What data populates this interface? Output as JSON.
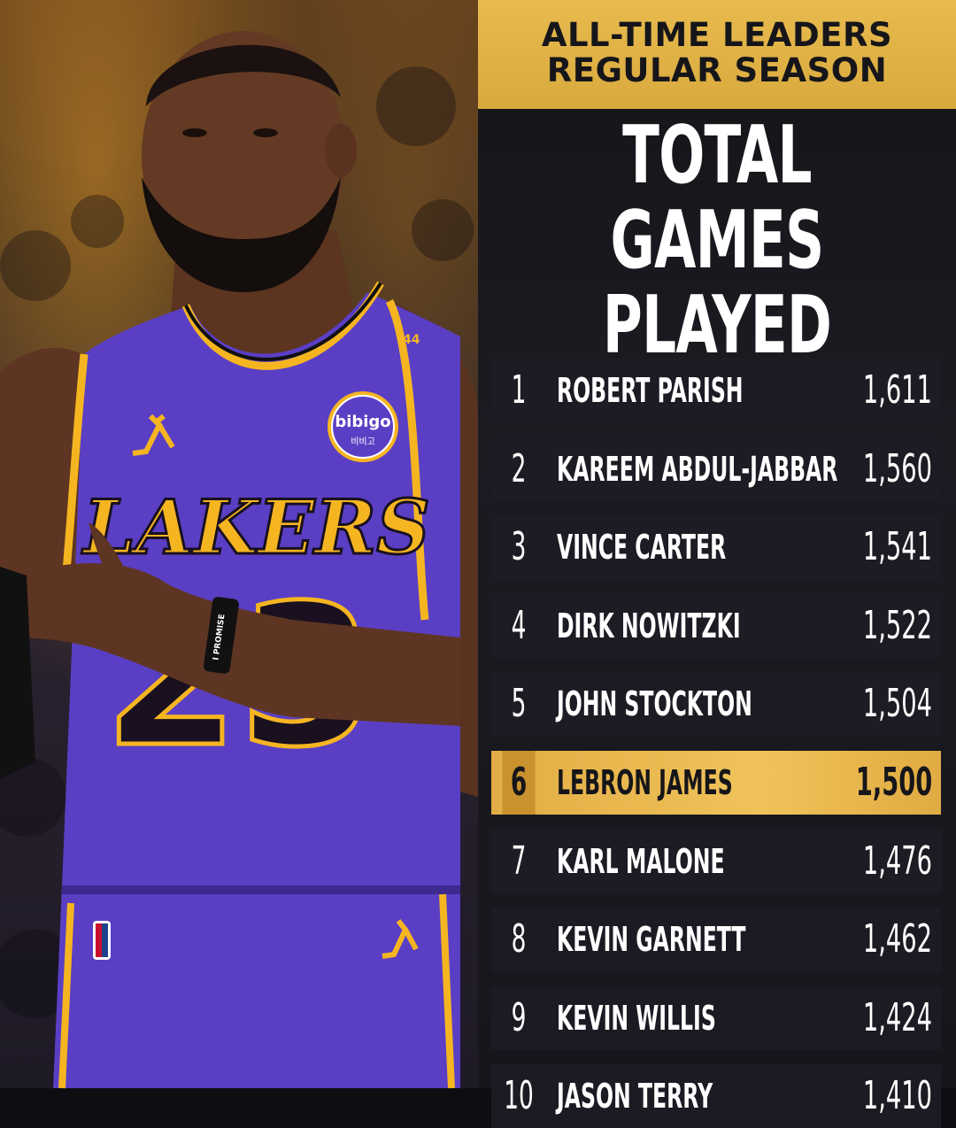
{
  "header": {
    "line1": "ALL-TIME LEADERS",
    "line2": "REGULAR SEASON"
  },
  "headline": {
    "line1": "TOTAL",
    "line2": "GAMES PLAYED"
  },
  "photo": {
    "jersey_team": "LAKERS",
    "sponsor": "bibigo",
    "sponsor_sub": "비비고",
    "wristband": "I PROMISE",
    "strap_number": "44",
    "colors": {
      "jersey": "#5a3fc4",
      "trim": "#f5b521",
      "skin": "#6b3f28"
    }
  },
  "colors": {
    "gold": "#e8bb4f",
    "panel": "#16161c",
    "row": "#1c1c24"
  },
  "leaders": [
    {
      "rank": "1",
      "name": "ROBERT PARISH",
      "games": "1,611",
      "highlight": false
    },
    {
      "rank": "2",
      "name": "KAREEM ABDUL-JABBAR",
      "games": "1,560",
      "highlight": false
    },
    {
      "rank": "3",
      "name": "VINCE CARTER",
      "games": "1,541",
      "highlight": false
    },
    {
      "rank": "4",
      "name": "DIRK NOWITZKI",
      "games": "1,522",
      "highlight": false
    },
    {
      "rank": "5",
      "name": "JOHN STOCKTON",
      "games": "1,504",
      "highlight": false
    },
    {
      "rank": "6",
      "name": "LEBRON JAMES",
      "games": "1,500",
      "highlight": true
    },
    {
      "rank": "7",
      "name": "KARL MALONE",
      "games": "1,476",
      "highlight": false
    },
    {
      "rank": "8",
      "name": "KEVIN GARNETT",
      "games": "1,462",
      "highlight": false
    },
    {
      "rank": "9",
      "name": "KEVIN WILLIS",
      "games": "1,424",
      "highlight": false
    },
    {
      "rank": "10",
      "name": "JASON TERRY",
      "games": "1,410",
      "highlight": false
    }
  ]
}
